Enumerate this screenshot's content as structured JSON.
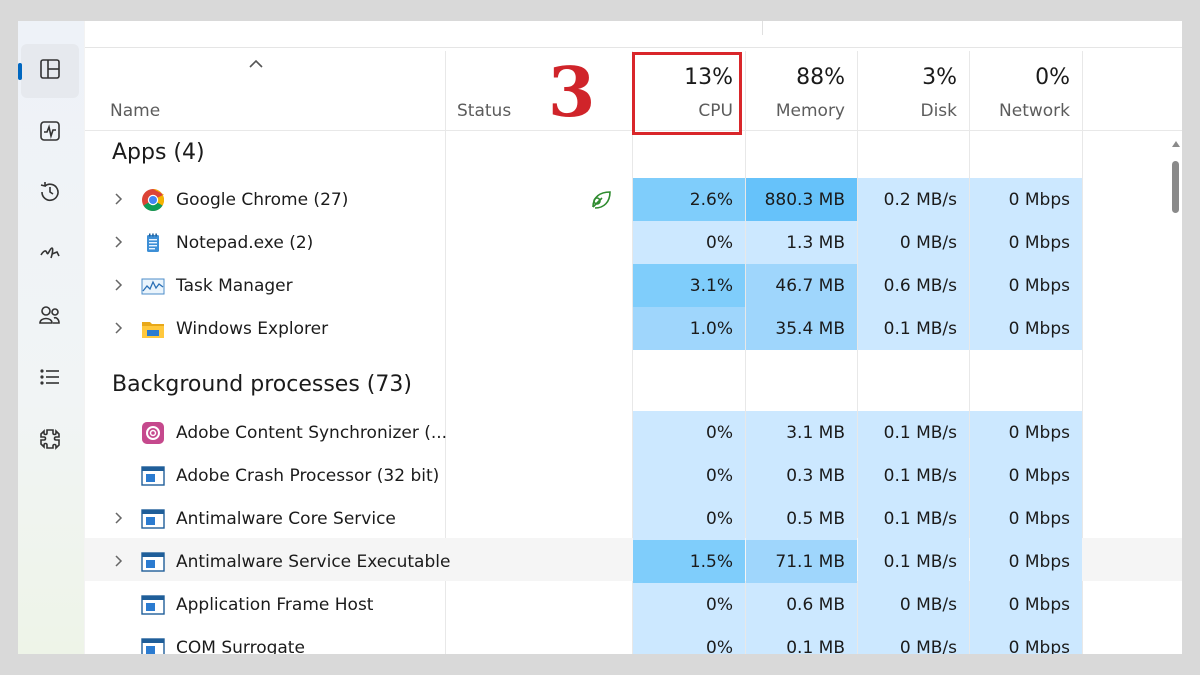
{
  "header": {
    "name_label": "Name",
    "status_label": "Status",
    "cpu": {
      "pct": "13%",
      "label": "CPU"
    },
    "memory": {
      "pct": "88%",
      "label": "Memory"
    },
    "disk": {
      "pct": "3%",
      "label": "Disk"
    },
    "network": {
      "pct": "0%",
      "label": "Network"
    }
  },
  "annotation": {
    "step_number": "3",
    "highlight_color": "#d9262a"
  },
  "groups": {
    "apps": "Apps (4)",
    "background": "Background processes (73)"
  },
  "apps": [
    {
      "name": "Google Chrome (27)",
      "icon": "chrome-icon",
      "expandable": true,
      "status_icon": "efficiency-leaf-icon",
      "cpu": "2.6%",
      "memory": "880.3 MB",
      "disk": "0.2 MB/s",
      "network": "0 Mbps"
    },
    {
      "name": "Notepad.exe (2)",
      "icon": "notepad-icon",
      "expandable": true,
      "cpu": "0%",
      "memory": "1.3 MB",
      "disk": "0 MB/s",
      "network": "0 Mbps"
    },
    {
      "name": "Task Manager",
      "icon": "task-manager-icon",
      "expandable": true,
      "cpu": "3.1%",
      "memory": "46.7 MB",
      "disk": "0.6 MB/s",
      "network": "0 Mbps"
    },
    {
      "name": "Windows Explorer",
      "icon": "folder-icon",
      "expandable": true,
      "cpu": "1.0%",
      "memory": "35.4 MB",
      "disk": "0.1 MB/s",
      "network": "0 Mbps"
    }
  ],
  "background": [
    {
      "name": "Adobe Content Synchronizer (...",
      "icon": "adobe-cc-icon",
      "expandable": false,
      "cpu": "0%",
      "memory": "3.1 MB",
      "disk": "0.1 MB/s",
      "network": "0 Mbps"
    },
    {
      "name": "Adobe Crash Processor (32 bit)",
      "icon": "window-app-icon",
      "expandable": false,
      "cpu": "0%",
      "memory": "0.3 MB",
      "disk": "0.1 MB/s",
      "network": "0 Mbps"
    },
    {
      "name": "Antimalware Core Service",
      "icon": "window-app-icon",
      "expandable": true,
      "cpu": "0%",
      "memory": "0.5 MB",
      "disk": "0.1 MB/s",
      "network": "0 Mbps"
    },
    {
      "name": "Antimalware Service Executable",
      "icon": "window-app-icon",
      "expandable": true,
      "cpu": "1.5%",
      "memory": "71.1 MB",
      "disk": "0.1 MB/s",
      "network": "0 Mbps"
    },
    {
      "name": "Application Frame Host",
      "icon": "window-app-icon",
      "expandable": false,
      "cpu": "0%",
      "memory": "0.6 MB",
      "disk": "0 MB/s",
      "network": "0 Mbps"
    },
    {
      "name": "COM Surrogate",
      "icon": "window-app-icon",
      "expandable": false,
      "cpu": "0%",
      "memory": "0.1 MB",
      "disk": "0 MB/s",
      "network": "0 Mbps"
    }
  ],
  "nav": [
    {
      "icon": "processes-icon",
      "active": true
    },
    {
      "icon": "performance-icon"
    },
    {
      "icon": "app-history-icon"
    },
    {
      "icon": "startup-apps-icon"
    },
    {
      "icon": "users-icon"
    },
    {
      "icon": "details-icon"
    },
    {
      "icon": "services-icon"
    }
  ],
  "colors": {
    "heat_low": "#cce8ff",
    "heat_mid": "#9fd6fc",
    "heat_high": "#7fcdfb",
    "accent": "#0067c0"
  }
}
